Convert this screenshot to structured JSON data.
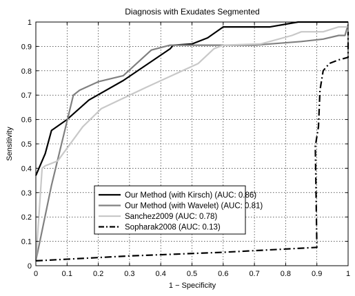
{
  "chart_data": {
    "type": "line",
    "title": "Diagnosis with Exudates Segmented",
    "xlabel": "1 − Specificity",
    "ylabel": "Sensitivity",
    "xlim": [
      0,
      1
    ],
    "ylim": [
      0,
      1
    ],
    "xticks": [
      "0",
      "0.1",
      "0.2",
      "0.3",
      "0.4",
      "0.5",
      "0.6",
      "0.7",
      "0.8",
      "0.9",
      "1"
    ],
    "yticks": [
      "0",
      "0.1",
      "0.2",
      "0.3",
      "0.4",
      "0.5",
      "0.6",
      "0.7",
      "0.8",
      "0.9",
      "1"
    ],
    "grid": true,
    "legend_position": "lower-center",
    "series": [
      {
        "name": "Our Method (with Kirsch) (AUC: 0.86)",
        "color": "#000000",
        "style": "solid",
        "x": [
          0,
          0.01,
          0.03,
          0.05,
          0.1,
          0.17,
          0.28,
          0.43,
          0.44,
          0.5,
          0.55,
          0.6,
          0.75,
          0.84,
          0.85,
          1.0
        ],
        "y": [
          0.37,
          0.4,
          0.46,
          0.555,
          0.6,
          0.68,
          0.76,
          0.89,
          0.905,
          0.91,
          0.935,
          0.98,
          0.98,
          1.0,
          1.0,
          1.0
        ]
      },
      {
        "name": "Our Method (with Wavelet) (AUC: 0.81)",
        "color": "#808080",
        "style": "solid",
        "x": [
          0,
          0.05,
          0.12,
          0.14,
          0.2,
          0.28,
          0.37,
          0.43,
          0.6,
          0.7,
          0.85,
          0.92,
          0.97,
          0.99,
          1.0
        ],
        "y": [
          0.02,
          0.33,
          0.7,
          0.72,
          0.755,
          0.78,
          0.885,
          0.905,
          0.905,
          0.905,
          0.92,
          0.93,
          0.945,
          0.945,
          0.99
        ]
      },
      {
        "name": "Sanchez2009 (AUC: 0.78)",
        "color": "#c8c8c8",
        "style": "solid",
        "x": [
          0,
          0.02,
          0.03,
          0.07,
          0.15,
          0.21,
          0.35,
          0.52,
          0.57,
          0.6,
          0.72,
          0.82,
          0.85,
          0.9,
          0.92,
          0.97,
          1.0
        ],
        "y": [
          0.02,
          0.4,
          0.41,
          0.43,
          0.57,
          0.645,
          0.73,
          0.83,
          0.89,
          0.905,
          0.91,
          0.945,
          0.96,
          0.96,
          0.96,
          0.98,
          0.98
        ]
      },
      {
        "name": "Sopharak2008 (AUC: 0.13)",
        "color": "#000000",
        "style": "dashdot",
        "x": [
          0,
          0.3,
          0.6,
          0.9,
          0.895,
          0.905,
          0.91,
          0.92,
          0.94,
          0.97,
          1.0,
          1.0
        ],
        "y": [
          0.02,
          0.04,
          0.055,
          0.075,
          0.49,
          0.57,
          0.72,
          0.8,
          0.83,
          0.845,
          0.855,
          0.96
        ]
      }
    ]
  }
}
